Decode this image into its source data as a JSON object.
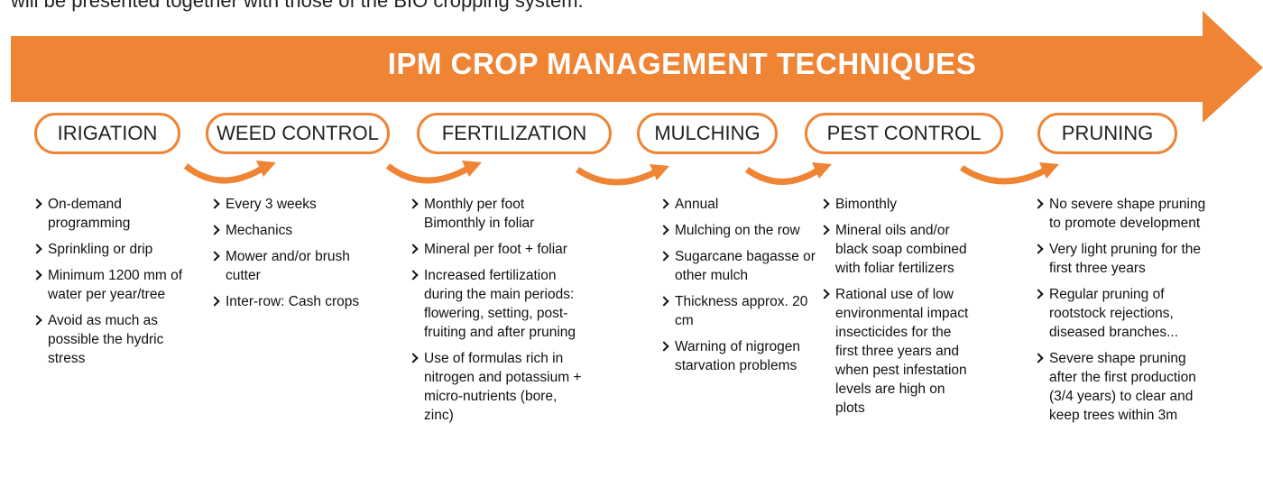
{
  "caption": "will be presented together with those of the BIO cropping system.",
  "title": "IPM CROP MANAGEMENT TECHNIQUES",
  "columns": [
    {
      "label": "IRIGATION",
      "items": [
        "On-demand programming",
        "Sprinkling or drip",
        "Minimum 1200 mm of water per year/tree",
        "Avoid as much as possible the hydric stress"
      ]
    },
    {
      "label": "WEED CONTROL",
      "items": [
        "Every 3 weeks",
        "Mechanics",
        "Mower and/or brush cutter",
        "Inter-row: Cash crops"
      ]
    },
    {
      "label": "FERTILIZATION",
      "items": [
        "Monthly per foot Bimonthly in foliar",
        "Mineral per foot + foliar",
        "Increased fertilization during the main periods: flowering, setting, post-fruiting and after pruning",
        "Use of formulas rich in nitrogen and potassium + micro-nutrients (bore, zinc)"
      ]
    },
    {
      "label": "MULCHING",
      "items": [
        "Annual",
        "Mulching on the row",
        "Sugarcane bagasse or other mulch",
        "Thickness approx. 20 cm",
        "Warning of nigrogen starvation problems"
      ]
    },
    {
      "label": "PEST CONTROL",
      "items": [
        "Bimonthly",
        "Mineral oils and/or black soap combined with foliar fertilizers",
        "Rational use of low environmental impact insecticides for the first three years and when pest infestation levels are high on plots"
      ]
    },
    {
      "label": "PRUNING",
      "items": [
        "No severe shape pruning to promote development",
        "Very light pruning for the first three years",
        "Regular pruning of rootstock rejections, diseased branches...",
        "Severe shape pruning after the first production (3/4 years) to clear and keep trees within 3m"
      ]
    }
  ]
}
